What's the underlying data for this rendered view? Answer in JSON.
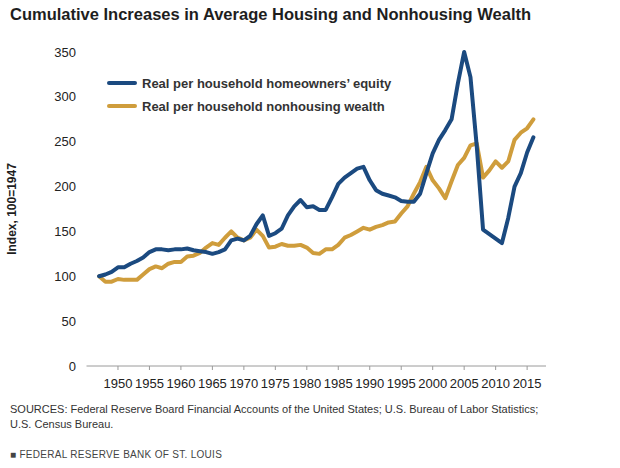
{
  "chart_data": {
    "type": "line",
    "title": "Cumulative Increases in Average Housing and Nonhousing Wealth",
    "y_label": "Index, 100=1947",
    "source": [
      "SOURCES: Federal Reserve Board Financial Accounts of the United States; U.S. Bureau of Labor Statistics;",
      "U.S. Census Bureau."
    ],
    "footer": "■ FEDERAL RESERVE BANK OF ST. LOUIS",
    "x": [
      1947,
      1948,
      1949,
      1950,
      1951,
      1952,
      1953,
      1954,
      1955,
      1956,
      1957,
      1958,
      1959,
      1960,
      1961,
      1962,
      1963,
      1964,
      1965,
      1966,
      1967,
      1968,
      1969,
      1970,
      1971,
      1972,
      1973,
      1974,
      1975,
      1976,
      1977,
      1978,
      1979,
      1980,
      1981,
      1982,
      1983,
      1984,
      1985,
      1986,
      1987,
      1988,
      1989,
      1990,
      1991,
      1992,
      1993,
      1994,
      1995,
      1996,
      1997,
      1998,
      1999,
      2000,
      2001,
      2002,
      2003,
      2004,
      2005,
      2006,
      2007,
      2008,
      2009,
      2010,
      2011,
      2012,
      2013,
      2014,
      2015,
      2016
    ],
    "series": [
      {
        "name": "Real per household homeowners’ equity",
        "color": "#1b4a80",
        "values": [
          100,
          102,
          105,
          110,
          110,
          114,
          117,
          121,
          127,
          130,
          130,
          129,
          130,
          130,
          131,
          129,
          128,
          127,
          125,
          127,
          130,
          140,
          142,
          140,
          145,
          158,
          168,
          145,
          148,
          153,
          168,
          178,
          185,
          177,
          178,
          174,
          174,
          188,
          203,
          210,
          215,
          220,
          222,
          207,
          196,
          192,
          190,
          188,
          184,
          183,
          183,
          192,
          215,
          237,
          252,
          263,
          275,
          315,
          350,
          322,
          245,
          152,
          147,
          142,
          137,
          165,
          200,
          215,
          238,
          255
        ]
      },
      {
        "name": "Real per household nonhousing wealth",
        "color": "#cf9d3c",
        "values": [
          100,
          94,
          94,
          97,
          96,
          96,
          96,
          102,
          108,
          111,
          109,
          114,
          116,
          116,
          122,
          123,
          126,
          132,
          137,
          135,
          143,
          150,
          143,
          140,
          143,
          152,
          145,
          132,
          133,
          136,
          134,
          134,
          135,
          132,
          126,
          125,
          130,
          130,
          135,
          143,
          146,
          150,
          154,
          152,
          155,
          157,
          160,
          161,
          170,
          178,
          192,
          205,
          222,
          207,
          198,
          187,
          206,
          224,
          232,
          246,
          248,
          210,
          218,
          228,
          221,
          228,
          252,
          260,
          265,
          275
        ]
      }
    ],
    "xlim": [
      1945,
      2018
    ],
    "xticks": [
      1950,
      1955,
      1960,
      1965,
      1970,
      1975,
      1980,
      1985,
      1990,
      1995,
      2000,
      2005,
      2010,
      2015
    ],
    "ylim": [
      0,
      350
    ],
    "yticks": [
      0,
      50,
      100,
      150,
      200,
      250,
      300,
      350
    ],
    "grid": false,
    "legend": "top-left"
  }
}
